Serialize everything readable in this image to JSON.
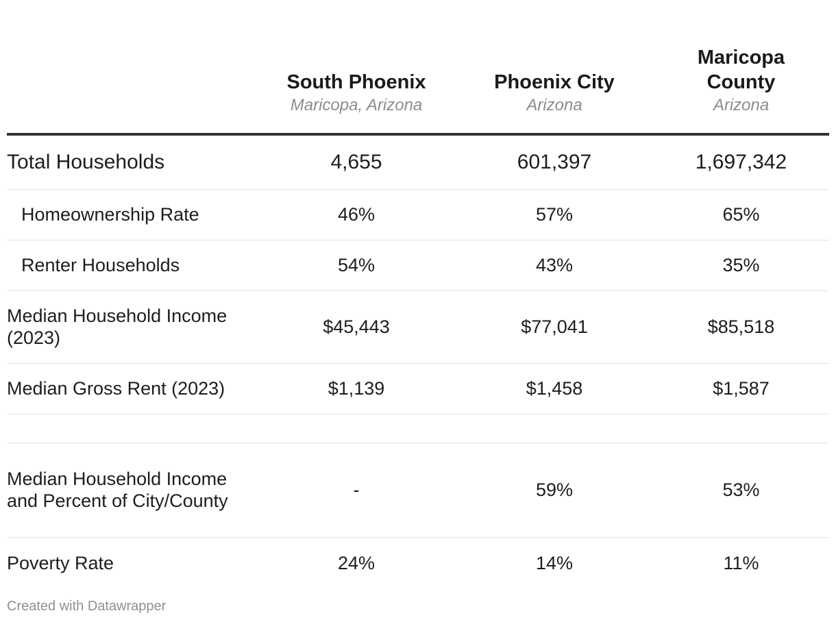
{
  "chart_data": {
    "type": "table",
    "columns": [
      {
        "title": "",
        "subtitle": ""
      },
      {
        "title": "South Phoenix",
        "subtitle": "Maricopa, Arizona"
      },
      {
        "title": "Phoenix City",
        "subtitle": "Arizona"
      },
      {
        "title": "Maricopa County",
        "subtitle": "Arizona"
      }
    ],
    "rows": [
      {
        "label": "Total Households",
        "values": [
          "4,655",
          "601,397",
          "1,697,342"
        ],
        "indent": false,
        "major": true
      },
      {
        "label": "Homeownership Rate",
        "values": [
          "46%",
          "57%",
          "65%"
        ],
        "indent": true,
        "major": false
      },
      {
        "label": "Renter Households",
        "values": [
          "54%",
          "43%",
          "35%"
        ],
        "indent": true,
        "major": false
      },
      {
        "label": "Median Household Income (2023)",
        "values": [
          "$45,443",
          "$77,041",
          "$85,518"
        ],
        "indent": false,
        "major": false
      },
      {
        "label": "Median Gross Rent (2023)",
        "values": [
          "$1,139",
          "$1,458",
          "$1,587"
        ],
        "indent": false,
        "major": false
      },
      {
        "label": "",
        "values": [
          "",
          "",
          ""
        ],
        "indent": false,
        "major": false
      },
      {
        "label": "Median Household Income and Percent of City/County",
        "values": [
          "-",
          "59%",
          "53%"
        ],
        "indent": false,
        "major": false
      },
      {
        "label": "Poverty Rate",
        "values": [
          "24%",
          "14%",
          "11%"
        ],
        "indent": false,
        "major": false
      }
    ]
  },
  "footer": {
    "credit": "Created with Datawrapper"
  },
  "colors": {
    "header_rule": "#333333",
    "row_rule": "#e2e2e2",
    "subtitle": "#8c8c8c",
    "credit": "#8f8f8f"
  }
}
